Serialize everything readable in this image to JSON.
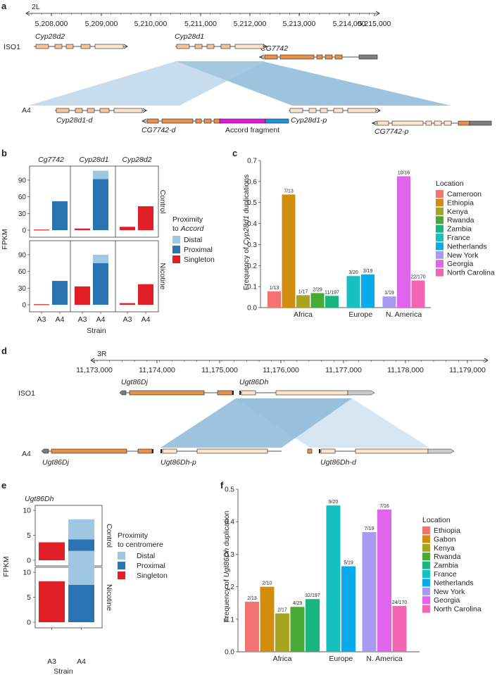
{
  "panels": {
    "a": "a",
    "b": "b",
    "c": "c",
    "d": "d",
    "e": "e",
    "f": "f"
  },
  "panel_a": {
    "chrom": "2L",
    "ticks": [
      "5,208,000",
      "5,209,000",
      "5,210,000",
      "5,211,000",
      "5,212,000",
      "5,213,000",
      "5,214,000",
      "5,215,000"
    ],
    "iso1": "ISO1",
    "a4": "A4",
    "genes_top": [
      "Cyp28d2",
      "Cyp28d1",
      "CG7742"
    ],
    "genes_bottom": [
      "Cyp28d1-d",
      "CG7742-d",
      "Accord fragment",
      "Cyp28d1-p",
      "CG7742-p"
    ]
  },
  "panel_d": {
    "chrom": "3R",
    "ticks": [
      "11,173,000",
      "11,174,000",
      "11,175,000",
      "11,176,000",
      "11,177,000",
      "11,178,000",
      "11,179,000"
    ],
    "iso1": "ISO1",
    "a4": "A4",
    "genes_top": [
      "Ugt86Dj",
      "Ugt86Dh"
    ],
    "genes_bottom": [
      "Ugt86Dj",
      "Ugt86Dh-p",
      "Ugt86Dh-d"
    ]
  },
  "colors": {
    "distal": "#9ec8e2",
    "proximal": "#2a74b4",
    "singleton": "#e21e26",
    "africa": [
      "#f2736f",
      "#d08d0f",
      "#a7a51f",
      "#46aa34",
      "#19b680"
    ],
    "europe": [
      "#16c0c0",
      "#08acec"
    ],
    "namerica": [
      "#a79af0",
      "#e164ec",
      "#f264b4"
    ],
    "f_africa": [
      "#f2736f",
      "#d08d0f",
      "#a7a51f",
      "#46aa34",
      "#19b680"
    ],
    "f_europe": [
      "#16c0c0",
      "#08acec"
    ],
    "f_namerica": [
      "#a79af0",
      "#e164ec",
      "#f264b4"
    ]
  },
  "chart_data": [
    {
      "id": "b",
      "type": "bar",
      "stacked": true,
      "ylabel": "FPKM",
      "xlabel": "Strain",
      "genes": [
        "Cg7742",
        "Cyp28d1",
        "Cyp28d2"
      ],
      "conditions": [
        "Control",
        "Nicotine"
      ],
      "categories": [
        "A3",
        "A4"
      ],
      "yticks": [
        0,
        30,
        60,
        90
      ],
      "ylim": [
        0,
        110
      ],
      "legend_title": [
        "Proximity",
        "to Accord"
      ],
      "legend": [
        "Distal",
        "Proximal",
        "Singleton"
      ],
      "data": {
        "Control": {
          "Cg7742": {
            "A3": {
              "singleton": 1
            },
            "A4": {
              "proximal": 52
            }
          },
          "Cyp28d1": {
            "A3": {
              "singleton": 3
            },
            "A4": {
              "proximal": 92,
              "distal": 15
            }
          },
          "Cyp28d2": {
            "A3": {
              "singleton": 6
            },
            "A4": {
              "singleton": 43
            }
          }
        },
        "Nicotine": {
          "Cg7742": {
            "A3": {
              "singleton": 1
            },
            "A4": {
              "proximal": 43
            }
          },
          "Cyp28d1": {
            "A3": {
              "singleton": 33
            },
            "A4": {
              "proximal": 75,
              "distal": 15
            }
          },
          "Cyp28d2": {
            "A3": {
              "singleton": 3
            },
            "A4": {
              "singleton": 37
            }
          }
        }
      }
    },
    {
      "id": "c",
      "type": "bar",
      "ylabel_parts": [
        "Frequency of ",
        "Cyp28d1",
        " duplications"
      ],
      "ylim": [
        0,
        0.7
      ],
      "yticks": [
        "0.0",
        "0.1",
        "0.2",
        "0.3",
        "0.4",
        "0.5",
        "0.6",
        "0.7"
      ],
      "groups": [
        {
          "name": "Africa",
          "bars": [
            {
              "loc": "Cameroon",
              "value": 0.077,
              "label": "1/13"
            },
            {
              "loc": "Ethiopia",
              "value": 0.538,
              "label": "7/13"
            },
            {
              "loc": "Kenya",
              "value": 0.059,
              "label": "1/17"
            },
            {
              "loc": "Rwanda",
              "value": 0.069,
              "label": "2/29"
            },
            {
              "loc": "Zambia",
              "value": 0.056,
              "label": "11/197"
            }
          ]
        },
        {
          "name": "Europe",
          "bars": [
            {
              "loc": "France",
              "value": 0.15,
              "label": "3/20"
            },
            {
              "loc": "Netherlands",
              "value": 0.158,
              "label": "3/19"
            }
          ]
        },
        {
          "name": "N. America",
          "bars": [
            {
              "loc": "New York",
              "value": 0.053,
              "label": "1/19"
            },
            {
              "loc": "Georgia",
              "value": 0.625,
              "label": "10/16"
            },
            {
              "loc": "North Carolina",
              "value": 0.129,
              "label": "22/170"
            }
          ]
        }
      ],
      "legend_title": "Location",
      "legend": [
        "Cameroon",
        "Ethiopia",
        "Kenya",
        "Rwanda",
        "Zambia",
        "France",
        "Netherlands",
        "New York",
        "Georgia",
        "North Carolina"
      ]
    },
    {
      "id": "e",
      "type": "bar",
      "stacked": true,
      "gene": "Ugt86Dh",
      "ylabel": "FPKM",
      "xlabel": "Strain",
      "conditions": [
        "Control",
        "Nicotine"
      ],
      "categories": [
        "A3",
        "A4"
      ],
      "yticks": [
        0,
        5,
        10
      ],
      "ylim": [
        0,
        11
      ],
      "legend_title": [
        "Proximity",
        "to centromere"
      ],
      "legend": [
        "Distal",
        "Proximal",
        "Singleton"
      ],
      "data": {
        "Control": {
          "A3": {
            "singleton": 3.6
          },
          "A4": {
            "proximal": 4.2,
            "distal": 4.0
          }
        },
        "Nicotine": {
          "A3": {
            "singleton": 8.2
          },
          "A4": {
            "proximal": 7.5,
            "distal": 6.8
          }
        }
      }
    },
    {
      "id": "f",
      "type": "bar",
      "ylabel_parts": [
        "Frequency of ",
        "Ugt86Dh",
        " duplication"
      ],
      "ylim": [
        0,
        0.5
      ],
      "yticks": [
        "0.0",
        "0.1",
        "0.2",
        "0.3",
        "0.4",
        "0.5"
      ],
      "groups": [
        {
          "name": "Africa",
          "bars": [
            {
              "loc": "Ethiopia",
              "value": 0.154,
              "label": "2/13"
            },
            {
              "loc": "Gabon",
              "value": 0.2,
              "label": "2/10"
            },
            {
              "loc": "Kenya",
              "value": 0.118,
              "label": "2/17"
            },
            {
              "loc": "Rwanda",
              "value": 0.138,
              "label": "4/29"
            },
            {
              "loc": "Zambia",
              "value": 0.162,
              "label": "32/197"
            }
          ]
        },
        {
          "name": "Europe",
          "bars": [
            {
              "loc": "France",
              "value": 0.45,
              "label": "9/20"
            },
            {
              "loc": "Netherlands",
              "value": 0.263,
              "label": "5/19"
            }
          ]
        },
        {
          "name": "N. America",
          "bars": [
            {
              "loc": "New York",
              "value": 0.368,
              "label": "7/19"
            },
            {
              "loc": "Georgia",
              "value": 0.4375,
              "label": "7/16"
            },
            {
              "loc": "North Carolina",
              "value": 0.141,
              "label": "24/170"
            }
          ]
        }
      ],
      "legend_title": "Location",
      "legend": [
        "Ethiopia",
        "Gabon",
        "Kenya",
        "Rwanda",
        "Zambia",
        "France",
        "Netherlands",
        "New York",
        "Georgia",
        "North Carolina"
      ]
    }
  ]
}
